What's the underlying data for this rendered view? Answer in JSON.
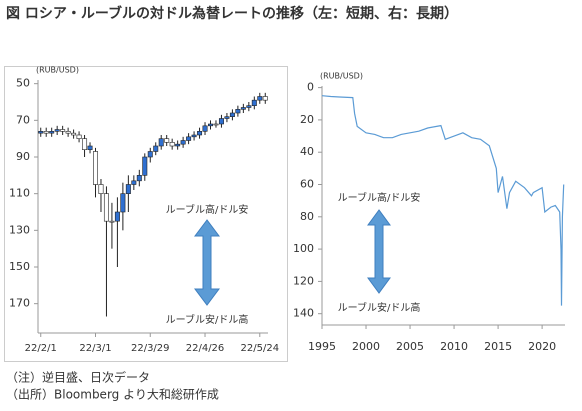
{
  "header": {
    "title": "図 ロシア・ルーブルの対ドル為替レートの推移（左：短期、右：長期）"
  },
  "notes": [
    "（注）逆目盛、日次データ",
    "（出所）Bloomberg より大和総研作成"
  ],
  "chart_data": [
    {
      "type": "candlestick",
      "unit_label": "(RUB/USD)",
      "y_reversed": true,
      "ylim": [
        48,
        186
      ],
      "yticks": [
        50,
        70,
        90,
        110,
        130,
        150,
        170
      ],
      "categories": [
        "22/2/1",
        null,
        null,
        null,
        null,
        null,
        null,
        null,
        null,
        null,
        "22/3/1",
        null,
        null,
        null,
        null,
        null,
        null,
        null,
        null,
        null,
        "22/3/29",
        null,
        null,
        null,
        null,
        null,
        null,
        null,
        null,
        null,
        "22/4/26",
        null,
        null,
        null,
        null,
        null,
        null,
        null,
        null,
        null,
        "22/5/24",
        null
      ],
      "open": [
        77,
        76,
        77,
        76,
        75,
        76,
        77,
        78,
        80,
        86,
        87,
        105,
        110,
        125,
        125,
        120,
        110,
        105,
        103,
        100,
        90,
        87,
        84,
        80,
        82,
        84,
        83,
        81,
        79,
        78,
        76,
        73,
        72,
        72,
        69,
        68,
        66,
        64,
        63,
        62,
        59,
        57
      ],
      "high": [
        79,
        79,
        79,
        78,
        78,
        79,
        80,
        82,
        90,
        88,
        112,
        120,
        177,
        140,
        150,
        130,
        120,
        108,
        106,
        103,
        93,
        89,
        86,
        84,
        86,
        86,
        85,
        83,
        81,
        80,
        78,
        75,
        74,
        74,
        71,
        70,
        68,
        66,
        65,
        64,
        61,
        61
      ],
      "low": [
        74,
        74,
        74,
        73,
        73,
        74,
        75,
        76,
        78,
        82,
        85,
        102,
        106,
        115,
        112,
        104,
        100,
        100,
        97,
        88,
        85,
        82,
        78,
        78,
        80,
        81,
        79,
        77,
        76,
        74,
        71,
        70,
        70,
        67,
        66,
        64,
        62,
        61,
        60,
        57,
        55,
        55
      ],
      "close": [
        76,
        77,
        76,
        75,
        76,
        77,
        78,
        80,
        86,
        84,
        105,
        110,
        125,
        125,
        120,
        110,
        105,
        103,
        100,
        90,
        87,
        84,
        80,
        82,
        84,
        83,
        81,
        79,
        78,
        76,
        73,
        72,
        72,
        69,
        68,
        66,
        64,
        63,
        62,
        59,
        57,
        59
      ],
      "up_color": "#2f6fd0",
      "down_color": "#ffffff",
      "annotations": [
        "ルーブル高/ドル安",
        "ルーブル安/ドル高"
      ]
    },
    {
      "type": "line",
      "unit_label": "(RUB/USD)",
      "y_reversed": true,
      "ylim": [
        -1,
        147
      ],
      "yticks": [
        0,
        20,
        40,
        60,
        80,
        100,
        120,
        140
      ],
      "xlim": [
        1995,
        2022.6
      ],
      "xticks": [
        1995,
        2000,
        2005,
        2010,
        2015,
        2020
      ],
      "x": [
        1995,
        1996,
        1997,
        1998.5,
        1998.7,
        1999,
        2000,
        2001,
        2002,
        2003,
        2004,
        2005,
        2006,
        2007,
        2008.5,
        2009,
        2009.5,
        2010,
        2011,
        2012,
        2013,
        2014,
        2014.8,
        2015,
        2015.5,
        2016,
        2016.3,
        2017,
        2018,
        2018.8,
        2019,
        2020,
        2020.3,
        2021,
        2021.5,
        2022,
        2022.15,
        2022.2,
        2022.3,
        2022.45
      ],
      "series": [
        {
          "color": "#5b9bd5",
          "values": [
            5,
            5.5,
            5.8,
            6.2,
            16,
            24,
            28,
            29,
            31,
            31,
            29,
            28,
            27,
            25,
            23.5,
            32,
            31,
            30,
            28,
            31,
            32,
            36,
            50,
            65,
            55,
            75,
            65,
            58,
            62,
            67,
            65,
            62,
            77,
            74,
            73,
            77,
            100,
            135,
            80,
            60
          ]
        }
      ],
      "annotations": [
        "ルーブル高/ドル安",
        "ルーブル安/ドル高"
      ]
    }
  ]
}
